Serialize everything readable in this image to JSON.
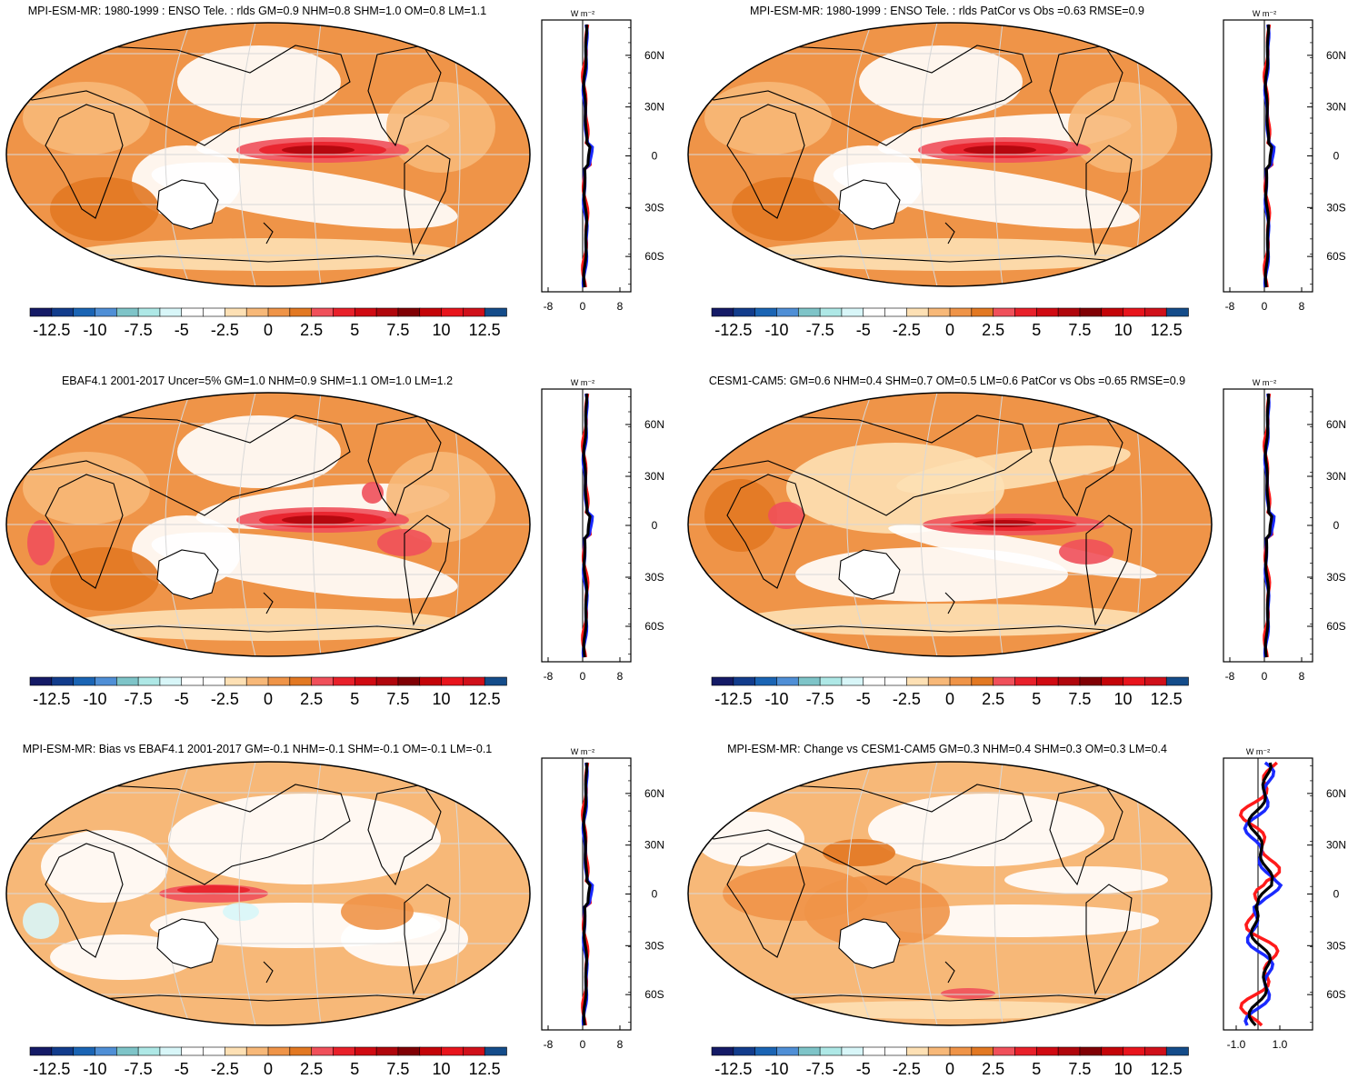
{
  "colorbar": {
    "colors": [
      "#141a66",
      "#123c8c",
      "#1a64b4",
      "#4f8fd6",
      "#7ec4c8",
      "#aee8e6",
      "#d8f6f8",
      "#ffffff",
      "#ffffff",
      "#fde0b4",
      "#f7b878",
      "#ef9448",
      "#e27822",
      "#f0505a",
      "#e8202a",
      "#d00a12",
      "#b0060c",
      "#800004",
      "#c40408",
      "#e8141c",
      "#d0101a",
      "#144c8a"
    ],
    "tick_labels": [
      "-12.5",
      "-10",
      "-7.5",
      "-5",
      "-2.5",
      "0",
      "2.5",
      "5",
      "7.5",
      "10",
      "12.5"
    ]
  },
  "panels": [
    {
      "title": "MPI-ESM-MR: 1980-1999 : ENSO Tele. : rlds GM=0.9 NHM=0.8 SHM=1.0 OM=0.8 LM=1.1",
      "profile": {
        "unit": "W m⁻²",
        "x_ticks": [
          "-8",
          "0",
          "8"
        ],
        "y_ticks": [
          "60N",
          "30N",
          "0",
          "30S",
          "60S"
        ]
      },
      "variant": 0
    },
    {
      "title": "MPI-ESM-MR: 1980-1999 : ENSO Tele. : rlds PatCor vs Obs =0.63 RMSE=0.9",
      "profile": {
        "unit": "W m⁻²",
        "x_ticks": [
          "-8",
          "0",
          "8"
        ],
        "y_ticks": [
          "60N",
          "30N",
          "0",
          "30S",
          "60S"
        ]
      },
      "variant": 0
    },
    {
      "title": "EBAF4.1 2001-2017 Uncer=5% GM=1.0 NHM=0.9 SHM=1.1 OM=1.0 LM=1.2",
      "profile": {
        "unit": "W m⁻²",
        "x_ticks": [
          "-8",
          "0",
          "8"
        ],
        "y_ticks": [
          "60N",
          "30N",
          "0",
          "30S",
          "60S"
        ]
      },
      "variant": 1
    },
    {
      "title": "CESM1-CAM5: GM=0.6 NHM=0.4 SHM=0.7 OM=0.5 LM=0.6 PatCor vs Obs =0.65 RMSE=0.9",
      "profile": {
        "unit": "W m⁻²",
        "x_ticks": [
          "-8",
          "0",
          "8"
        ],
        "y_ticks": [
          "60N",
          "30N",
          "0",
          "30S",
          "60S"
        ]
      },
      "variant": 2
    },
    {
      "title": "MPI-ESM-MR: Bias vs EBAF4.1 2001-2017 GM=-0.1 NHM=-0.1 SHM=-0.1 OM=-0.1 LM=-0.1",
      "profile": {
        "unit": "W m⁻²",
        "x_ticks": [
          "-8",
          "0",
          "8"
        ],
        "y_ticks": [
          "60N",
          "30N",
          "0",
          "30S",
          "60S"
        ]
      },
      "variant": 3
    },
    {
      "title": "MPI-ESM-MR: Change vs CESM1-CAM5 GM=0.3 NHM=0.4 SHM=0.3 OM=0.3 LM=0.4",
      "profile": {
        "unit": "W m⁻²",
        "x_ticks": [
          "-1.0",
          "1.0"
        ],
        "y_ticks": [
          "60N",
          "30N",
          "0",
          "30S",
          "60S"
        ]
      },
      "variant": 4
    }
  ]
}
